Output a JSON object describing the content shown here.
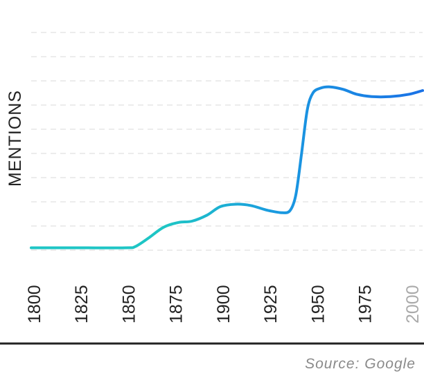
{
  "chart_data": {
    "type": "line",
    "ylabel": "MENTIONS",
    "xlabel": "",
    "x_ticks": [
      "1800",
      "1825",
      "1850",
      "1875",
      "1900",
      "1925",
      "1950",
      "1975",
      "2000"
    ],
    "faded_ticks": [
      "2000"
    ],
    "grid": true,
    "gridline_count": 10,
    "colors": {
      "line_start": "#1ec5c5",
      "line_end": "#1a72e6",
      "grid": "#e6e6e6",
      "axis": "#222222"
    },
    "xlim": [
      1800,
      2007
    ],
    "ylim": [
      0,
      10
    ],
    "series": [
      {
        "x": [
          1800,
          1825,
          1850,
          1855,
          1862,
          1870,
          1878,
          1885,
          1893,
          1900,
          1908,
          1916,
          1925,
          1933,
          1937,
          1940,
          1943,
          1946,
          1949,
          1953,
          1958,
          1965,
          1972,
          1980,
          1990,
          2000,
          2007
        ],
        "y": [
          0.1,
          0.1,
          0.1,
          0.15,
          0.5,
          0.95,
          1.15,
          1.2,
          1.45,
          1.8,
          1.9,
          1.85,
          1.65,
          1.55,
          1.65,
          2.3,
          4.0,
          5.8,
          6.5,
          6.7,
          6.75,
          6.65,
          6.45,
          6.35,
          6.35,
          6.45,
          6.6
        ]
      }
    ]
  },
  "source": "Source: Google"
}
